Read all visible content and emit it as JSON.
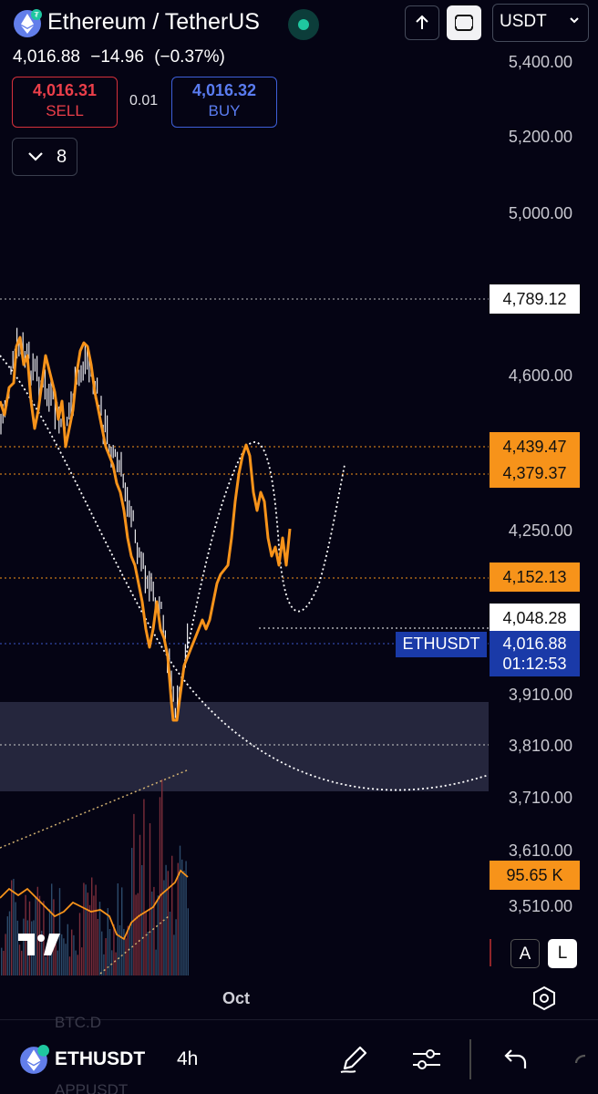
{
  "header": {
    "title": "Ethereum / TetherUS",
    "currency": "USDT",
    "last_price": "4,016.88",
    "change": "−14.96",
    "change_pct": "(−0.37%)"
  },
  "trade": {
    "sell_price": "4,016.31",
    "sell_label": "SELL",
    "spread": "0.01",
    "buy_price": "4,016.32",
    "buy_label": "BUY"
  },
  "indicators_count": "8",
  "price_axis": [
    "5,400.00",
    "5,200.00",
    "5,000.00",
    "4,600.00",
    "4,250.00",
    "3,910.00",
    "3,810.00",
    "3,710.00",
    "3,610.00",
    "3,510.00"
  ],
  "price_tags": {
    "high_line": "4,789.12",
    "level1": "4,439.47",
    "level2": "4,379.37",
    "level3": "4,152.13",
    "level4": "4,048.28",
    "current_price": "4,016.88",
    "countdown": "01:12:53",
    "volume": "95.65 K"
  },
  "ticker_tag": "ETHUSDT",
  "time_axis": "Oct",
  "scale_buttons": {
    "auto": "A",
    "log": "L"
  },
  "bottom": {
    "symbol": "ETHUSDT",
    "interval": "4h",
    "ghost_top": "BTC.D",
    "ghost_bottom": "APPUSDT"
  },
  "colors": {
    "background": "#050414",
    "accent_orange": "#f7931a",
    "sell_red": "#ec3f4a",
    "buy_blue": "#5a7cf0",
    "tag_blue": "#1a3aa8",
    "status_green": "#1fc7a0"
  },
  "icons": [
    "ethereum-logo-icon",
    "status-dot-icon",
    "arrow-up-icon",
    "fullscreen-icon",
    "chevron-down-icon",
    "tradingview-logo-icon",
    "settings-hex-icon",
    "pen-icon",
    "sliders-icon",
    "undo-icon"
  ]
}
